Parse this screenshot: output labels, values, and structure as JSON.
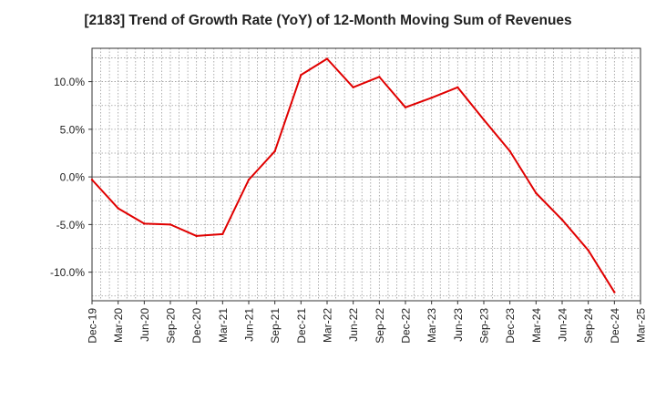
{
  "chart_data": {
    "type": "line",
    "title": "[2183]  Trend of Growth Rate (YoY) of 12-Month Moving Sum of Revenues",
    "xlabel": "",
    "ylabel": "",
    "ylim": [
      -13,
      13.5
    ],
    "y_ticks": [
      -10,
      -5,
      0,
      5,
      10
    ],
    "y_tick_labels": [
      "-10.0%",
      "-5.0%",
      "0.0%",
      "5.0%",
      "10.0%"
    ],
    "x_tick_labels": [
      "Dec-19",
      "Mar-20",
      "Jun-20",
      "Sep-20",
      "Dec-20",
      "Mar-21",
      "Jun-21",
      "Sep-21",
      "Dec-21",
      "Mar-22",
      "Jun-22",
      "Sep-22",
      "Dec-22",
      "Mar-23",
      "Jun-23",
      "Sep-23",
      "Dec-23",
      "Mar-24",
      "Jun-24",
      "Sep-24",
      "Dec-24",
      "Mar-25"
    ],
    "grid": true,
    "line_color": "#e00000",
    "series": [
      {
        "name": "",
        "x": [
          "Dec-19",
          "Mar-20",
          "Jun-20",
          "Sep-20",
          "Dec-20",
          "Mar-21",
          "Jun-21",
          "Sep-21",
          "Dec-21",
          "Mar-22",
          "Jun-22",
          "Sep-22",
          "Dec-22",
          "Mar-23",
          "Jun-23",
          "Sep-23",
          "Dec-23",
          "Mar-24",
          "Jun-24",
          "Sep-24",
          "Dec-24"
        ],
        "values": [
          -0.3,
          -3.3,
          -4.9,
          -5.0,
          -6.2,
          -6.0,
          -0.3,
          2.7,
          10.7,
          12.4,
          9.4,
          10.5,
          7.3,
          8.3,
          9.4,
          6.0,
          2.7,
          -1.7,
          -4.5,
          -7.7,
          -12.1
        ]
      }
    ]
  }
}
